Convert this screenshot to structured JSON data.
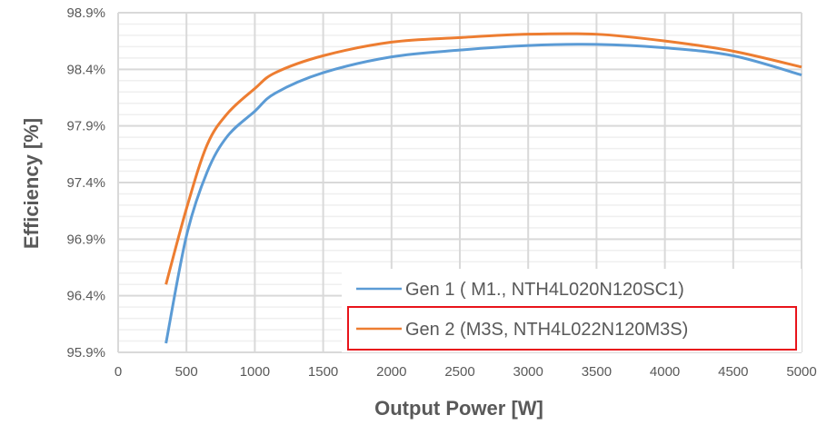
{
  "chart_data": {
    "type": "line",
    "title": "",
    "xlabel": "Output Power [W]",
    "ylabel": "Efficiency [%]",
    "xlim": [
      0,
      5000
    ],
    "ylim": [
      95.9,
      98.9
    ],
    "x_ticks": [
      "0",
      "500",
      "1000",
      "1500",
      "2000",
      "2500",
      "3000",
      "3500",
      "4000",
      "4500",
      "5000"
    ],
    "y_ticks": [
      "95.9%",
      "96.4%",
      "96.9%",
      "97.4%",
      "97.9%",
      "98.4%",
      "98.9%"
    ],
    "grid": true,
    "legend_position": "bottom-right",
    "series": [
      {
        "name": "Gen 1 ( M1., NTH4L020N120SC1)",
        "color": "#5b9bd5",
        "x": [
          350,
          500,
          650,
          800,
          1000,
          1150,
          1500,
          2000,
          2500,
          3000,
          3500,
          4000,
          4500,
          5000
        ],
        "y": [
          95.98,
          96.93,
          97.49,
          97.81,
          98.03,
          98.19,
          98.37,
          98.51,
          98.57,
          98.61,
          98.62,
          98.59,
          98.52,
          98.35
        ]
      },
      {
        "name": "Gen 2 (M3S, NTH4L022N120M3S)",
        "color": "#ed7d31",
        "x": [
          350,
          500,
          650,
          800,
          1000,
          1150,
          1500,
          2000,
          2500,
          3000,
          3500,
          4000,
          4500,
          5000
        ],
        "y": [
          96.5,
          97.17,
          97.73,
          98.01,
          98.23,
          98.37,
          98.52,
          98.64,
          98.68,
          98.71,
          98.71,
          98.65,
          98.56,
          98.42
        ]
      }
    ],
    "highlight_color": "#e8141b"
  }
}
